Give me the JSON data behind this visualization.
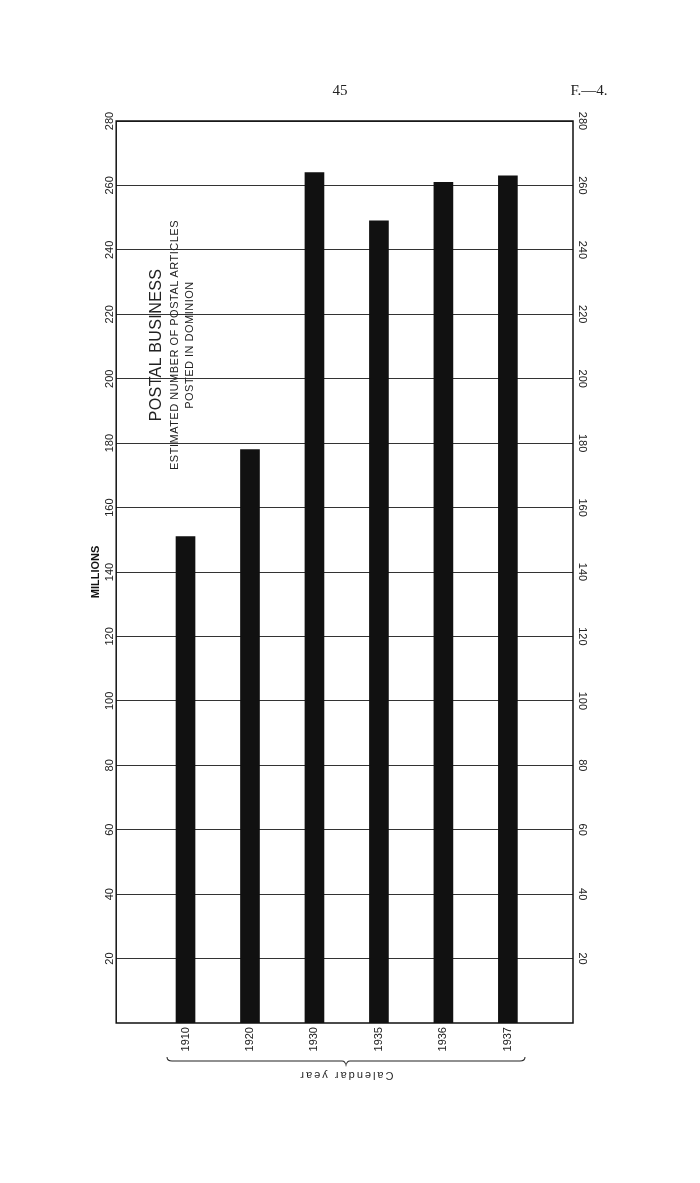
{
  "chart_data": {
    "type": "bar",
    "title": "POSTAL BUSINESS",
    "subtitle": "ESTIMATED NUMBER OF POSTAL ARTICLES POSTED IN DOMINION",
    "xlabel": "Calendar year",
    "ylabel": "MILLIONS",
    "categories": [
      "1910",
      "1920",
      "1930",
      "1935",
      "1936",
      "1937"
    ],
    "values": [
      151,
      178,
      264,
      249,
      261,
      263
    ],
    "color": "#111111",
    "ylim": [
      0,
      280
    ],
    "yticks": [
      20,
      40,
      60,
      80,
      100,
      120,
      140,
      160,
      180,
      200,
      220,
      240,
      260,
      280
    ],
    "y2lim": [
      0,
      280
    ],
    "y2ticks": [
      20,
      40,
      60,
      80,
      100,
      120,
      140,
      160,
      180,
      200,
      220,
      240,
      260,
      280
    ],
    "grid": "y",
    "annotations": [
      "45",
      "F.—4."
    ]
  }
}
